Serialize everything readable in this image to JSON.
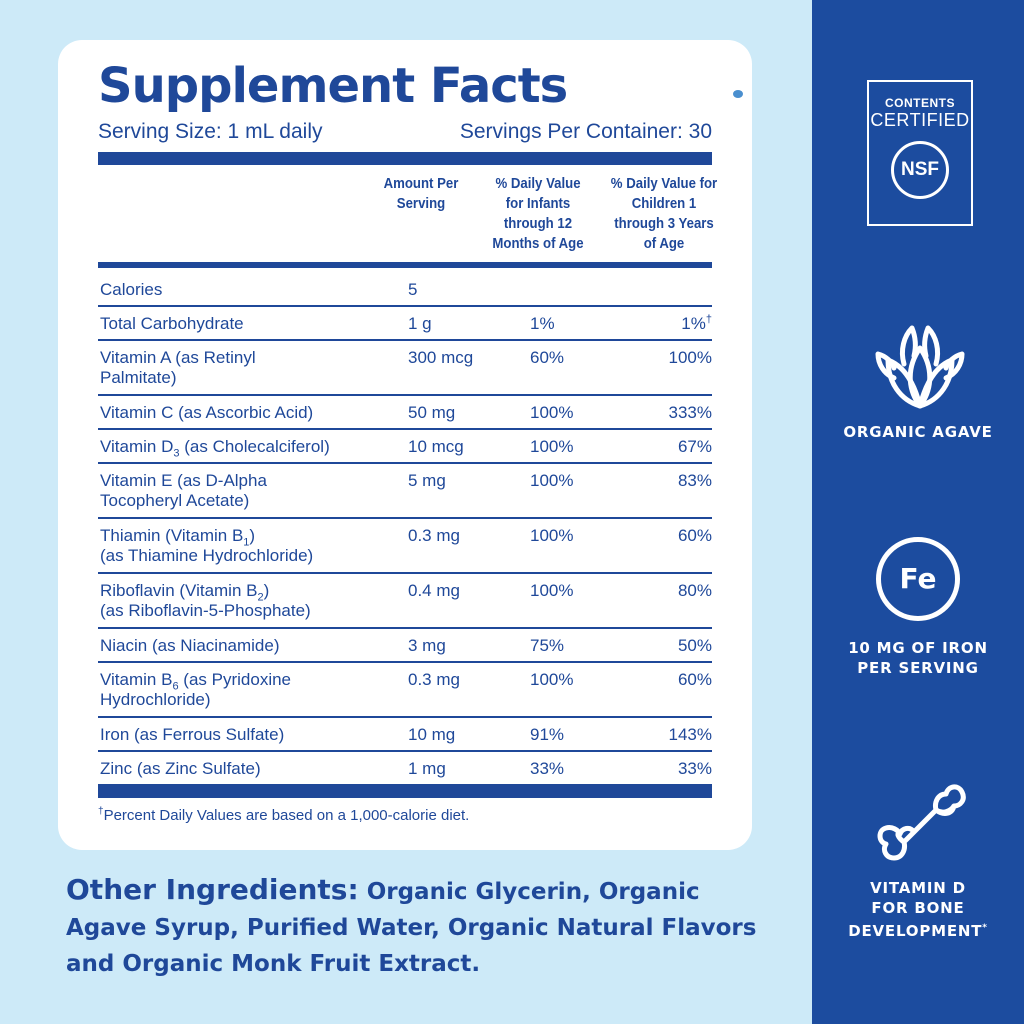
{
  "facts": {
    "title": "Supplement Facts",
    "serving_size": "Serving Size: 1 mL daily",
    "servings_per_container": "Servings Per Container: 30",
    "headers": {
      "amount": "Amount Per Serving",
      "infants": "% Daily Value for Infants through 12 Months of Age",
      "children": "% Daily Value for Children 1 through 3 Years of Age"
    },
    "rows": [
      {
        "name": "Calories",
        "amount": "5",
        "infants": "",
        "children": ""
      },
      {
        "name": "Total Carbohydrate",
        "amount": "1 g",
        "infants": "1%",
        "children": "1%",
        "children_mark": "†"
      },
      {
        "name_a": "Vitamin A (as Retinyl",
        "name_b": "Palmitate)",
        "amount": "300 mcg",
        "infants": "60%",
        "children": "100%"
      },
      {
        "name": "Vitamin C (as Ascorbic Acid)",
        "amount": "50 mg",
        "infants": "100%",
        "children": "333%"
      },
      {
        "name_pre": "Vitamin D",
        "name_sub": "3",
        "name_post": " (as Cholecalciferol)",
        "amount": "10 mcg",
        "infants": "100%",
        "children": "67%"
      },
      {
        "name_a": "Vitamin E (as D-Alpha",
        "name_b": "Tocopheryl Acetate)",
        "amount": "5 mg",
        "infants": "100%",
        "children": "83%"
      },
      {
        "name_pre": "Thiamin (Vitamin B",
        "name_sub": "1",
        "name_post": ")",
        "name_b": "(as Thiamine Hydrochloride)",
        "amount": "0.3 mg",
        "infants": "100%",
        "children": "60%"
      },
      {
        "name_pre": "Riboflavin (Vitamin B",
        "name_sub": "2",
        "name_post": ")",
        "name_b": "(as Riboflavin-5-Phosphate)",
        "amount": "0.4 mg",
        "infants": "100%",
        "children": "80%"
      },
      {
        "name": "Niacin (as Niacinamide)",
        "amount": "3 mg",
        "infants": "75%",
        "children": "50%"
      },
      {
        "name_pre": "Vitamin B",
        "name_sub": "6",
        "name_post": " (as Pyridoxine",
        "name_b": "Hydrochloride)",
        "amount": "0.3 mg",
        "infants": "100%",
        "children": "60%"
      },
      {
        "name": "Iron (as Ferrous Sulfate)",
        "amount": "10 mg",
        "infants": "91%",
        "children": "143%"
      },
      {
        "name": "Zinc (as Zinc Sulfate)",
        "amount": "1 mg",
        "infants": "33%",
        "children": "33%"
      }
    ],
    "footnote_mark": "†",
    "footnote": "Percent Daily Values are based on a 1,000-calorie diet."
  },
  "ingredients": {
    "lead": "Other Ingredients:",
    "text": "Organic Glycerin, Organic Agave Syrup, Purified Water, Organic Natural Flavors and Organic Monk Fruit Extract."
  },
  "panel": {
    "nsf": {
      "line1": "CONTENTS",
      "line2": "CERTIFIED",
      "logo": "NSF",
      "icon": "nsf-certified-icon"
    },
    "agave": {
      "label": "ORGANIC AGAVE",
      "icon": "agave-plant-icon"
    },
    "iron": {
      "symbol": "Fe",
      "label_line1": "10 MG OF IRON",
      "label_line2": "PER SERVING",
      "icon": "iron-fe-icon"
    },
    "vitd": {
      "label_line1": "VITAMIN D",
      "label_line2": "FOR BONE",
      "label_line3": "DEVELOPMENT",
      "label_mark": "*",
      "icon": "bone-icon"
    }
  },
  "colors": {
    "brand_blue": "#1f4899",
    "panel_blue": "#1c4c9f",
    "background": "#cdeaf8"
  }
}
